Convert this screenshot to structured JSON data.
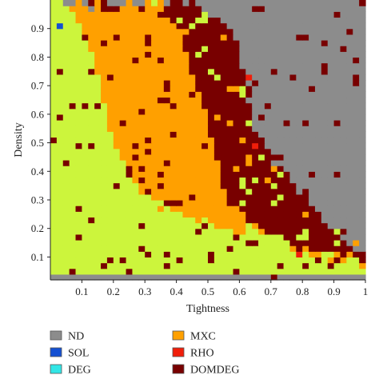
{
  "chart_data": {
    "type": "heatmap",
    "xlabel": "Tightness",
    "ylabel": "Density",
    "xlim": [
      0,
      1
    ],
    "ylim": [
      0.02,
      1.0
    ],
    "x_ticks": [
      {
        "value": 0.1,
        "label": "0.1"
      },
      {
        "value": 0.2,
        "label": "0.2"
      },
      {
        "value": 0.3,
        "label": "0.3"
      },
      {
        "value": 0.4,
        "label": "0.4"
      },
      {
        "value": 0.5,
        "label": "0.5"
      },
      {
        "value": 0.6,
        "label": "0.6"
      },
      {
        "value": 0.7,
        "label": "0.7"
      },
      {
        "value": 0.8,
        "label": "0.8"
      },
      {
        "value": 0.9,
        "label": "0.9"
      },
      {
        "value": 1.0,
        "label": "1"
      }
    ],
    "y_ticks": [
      {
        "value": 0.1,
        "label": "0.1"
      },
      {
        "value": 0.2,
        "label": "0.2"
      },
      {
        "value": 0.3,
        "label": "0.3"
      },
      {
        "value": 0.4,
        "label": "0.4"
      },
      {
        "value": 0.5,
        "label": "0.5"
      },
      {
        "value": 0.6,
        "label": "0.6"
      },
      {
        "value": 0.7,
        "label": "0.7"
      },
      {
        "value": 0.8,
        "label": "0.8"
      },
      {
        "value": 0.9,
        "label": "0.9"
      }
    ],
    "grid": false,
    "legend_position": "bottom",
    "categories": [
      {
        "name": "ND",
        "color": "#8c8c8c"
      },
      {
        "name": "SOL",
        "color": "#1450d2"
      },
      {
        "name": "DEG",
        "color": "#32e6e6"
      },
      {
        "name": "MXC",
        "color": "#ffa000"
      },
      {
        "name": "RHO",
        "color": "#f01e0a"
      },
      {
        "name": "DOMDEG",
        "color": "#780000"
      },
      {
        "name": "",
        "color": "#ccf53c"
      }
    ],
    "region_boundaries": [
      {
        "region": "DEG/MXC (lower)",
        "points": [
          [
            0.02,
            0.98
          ],
          [
            0.08,
            0.96
          ],
          [
            0.15,
            0.74
          ],
          [
            0.2,
            0.5
          ],
          [
            0.25,
            0.38
          ],
          [
            0.35,
            0.28
          ],
          [
            0.5,
            0.22
          ],
          [
            0.6,
            0.19
          ],
          [
            0.7,
            0.17
          ],
          [
            0.8,
            0.12
          ],
          [
            1.0,
            0.08
          ]
        ]
      },
      {
        "region": "MXC/DOMDEG",
        "points": [
          [
            0.17,
            0.98
          ],
          [
            0.36,
            0.98
          ],
          [
            0.42,
            0.86
          ],
          [
            0.46,
            0.72
          ],
          [
            0.5,
            0.56
          ],
          [
            0.52,
            0.46
          ],
          [
            0.55,
            0.35
          ],
          [
            0.58,
            0.28
          ],
          [
            0.62,
            0.22
          ],
          [
            0.7,
            0.17
          ],
          [
            0.8,
            0.13
          ],
          [
            1.0,
            0.09
          ]
        ]
      },
      {
        "region": "DOMDEG/ND",
        "points": [
          [
            0.24,
            0.98
          ],
          [
            0.46,
            0.98
          ],
          [
            0.55,
            0.93
          ],
          [
            0.6,
            0.83
          ],
          [
            0.62,
            0.7
          ],
          [
            0.65,
            0.55
          ],
          [
            0.7,
            0.45
          ],
          [
            0.78,
            0.35
          ],
          [
            0.86,
            0.25
          ],
          [
            0.93,
            0.15
          ],
          [
            1.0,
            0.12
          ]
        ]
      }
    ],
    "isolated_cells": [
      {
        "x": 0.035,
        "y": 0.91,
        "category": "SOL"
      },
      {
        "x": 0.62,
        "y": 0.72,
        "category": "RHO"
      },
      {
        "x": 0.65,
        "y": 0.48,
        "category": "RHO"
      },
      {
        "x": 0.78,
        "y": 0.11,
        "category": "RHO"
      }
    ]
  }
}
